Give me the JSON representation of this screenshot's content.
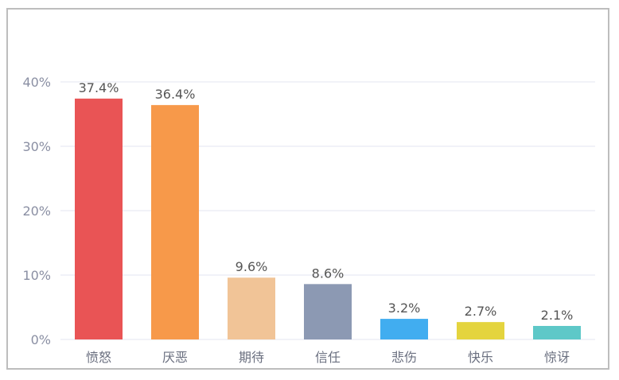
{
  "chart_data": {
    "type": "bar",
    "title": "",
    "xlabel": "",
    "ylabel": "",
    "categories": [
      "愤怒",
      "厌恶",
      "期待",
      "信任",
      "悲伤",
      "快乐",
      "惊讶"
    ],
    "values": [
      37.4,
      36.4,
      9.6,
      8.6,
      3.2,
      2.7,
      2.1
    ],
    "data_labels": [
      "37.4%",
      "36.4%",
      "9.6%",
      "8.6%",
      "3.2%",
      "2.7%",
      "2.1%"
    ],
    "colors": [
      "#e95455",
      "#f7994a",
      "#f1c497",
      "#8c99b3",
      "#41adf0",
      "#e4d43e",
      "#5ec8c8"
    ],
    "ylim": [
      0,
      40
    ],
    "yticks": [
      0,
      10,
      20,
      30,
      40
    ],
    "ytick_labels": [
      "0%",
      "10%",
      "20%",
      "30%",
      "40%"
    ],
    "grid": true,
    "legend": "none"
  }
}
